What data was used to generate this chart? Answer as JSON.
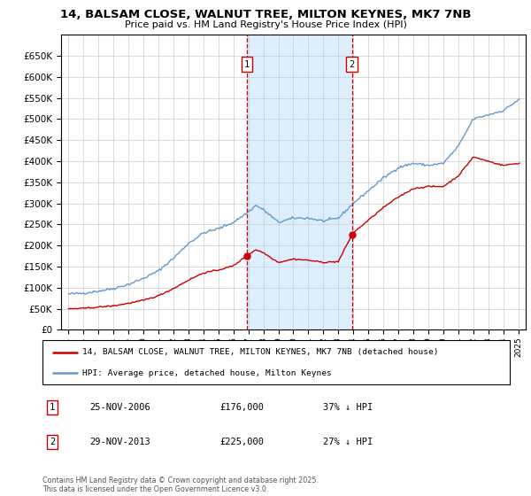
{
  "title": "14, BALSAM CLOSE, WALNUT TREE, MILTON KEYNES, MK7 7NB",
  "subtitle": "Price paid vs. HM Land Registry's House Price Index (HPI)",
  "legend_line1": "14, BALSAM CLOSE, WALNUT TREE, MILTON KEYNES, MK7 7NB (detached house)",
  "legend_line2": "HPI: Average price, detached house, Milton Keynes",
  "copyright": "Contains HM Land Registry data © Crown copyright and database right 2025.\nThis data is licensed under the Open Government Licence v3.0.",
  "sale1_label": "1",
  "sale1_date": "25-NOV-2006",
  "sale1_price": 176000,
  "sale1_hpi_diff": "37% ↓ HPI",
  "sale2_label": "2",
  "sale2_date": "29-NOV-2013",
  "sale2_price": 225000,
  "sale2_hpi_diff": "27% ↓ HPI",
  "sale1_year": 2006.9,
  "sale2_year": 2013.9,
  "red_color": "#cc0000",
  "blue_color": "#6699cc",
  "shade_color": "#ddeeff",
  "ylim": [
    0,
    700000
  ],
  "yticks": [
    0,
    50000,
    100000,
    150000,
    200000,
    250000,
    300000,
    350000,
    400000,
    450000,
    500000,
    550000,
    600000,
    650000
  ],
  "xlim": [
    1994.5,
    2025.5
  ]
}
